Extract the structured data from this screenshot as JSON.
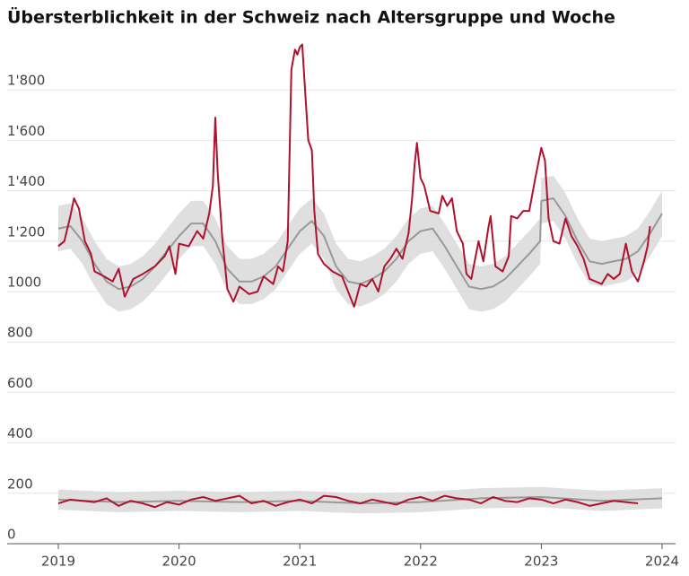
{
  "chart_data": {
    "type": "line",
    "title": "Übersterblichkeit in der Schweiz nach Altersgruppe und Woche",
    "xlim": [
      2019,
      2024
    ],
    "xticks": [
      2019,
      2020,
      2021,
      2022,
      2023,
      2024
    ],
    "ylim": [
      0,
      2000
    ],
    "yticks": [
      0,
      200,
      400,
      600,
      800,
      1000,
      {
        "value": 1200,
        "label": "1'200"
      },
      {
        "value": 1400,
        "label": "1'400"
      },
      {
        "value": 1600,
        "label": "1'600"
      },
      {
        "value": 1800,
        "label": "1'800"
      }
    ],
    "grid": true,
    "series": [
      {
        "kind": "band",
        "color": "#d9d9d9",
        "x": [
          2019.0,
          2019.1,
          2019.2,
          2019.3,
          2019.4,
          2019.5,
          2019.6,
          2019.7,
          2019.8,
          2019.9,
          2020.0,
          2020.1,
          2020.2,
          2020.3,
          2020.4,
          2020.5,
          2020.6,
          2020.7,
          2020.8,
          2020.9,
          2021.0,
          2021.1,
          2021.2,
          2021.3,
          2021.4,
          2021.5,
          2021.6,
          2021.7,
          2021.8,
          2021.9,
          2022.0,
          2022.1,
          2022.2,
          2022.3,
          2022.4,
          2022.5,
          2022.6,
          2022.7,
          2022.8,
          2022.9,
          2022.99,
          2023.0,
          2023.1,
          2023.2,
          2023.3,
          2023.4,
          2023.5,
          2023.6,
          2023.7,
          2023.8,
          2023.9,
          2024.0
        ],
        "upper": [
          1340,
          1350,
          1290,
          1200,
          1130,
          1100,
          1110,
          1140,
          1190,
          1250,
          1310,
          1360,
          1360,
          1290,
          1180,
          1130,
          1130,
          1150,
          1190,
          1260,
          1330,
          1370,
          1310,
          1190,
          1130,
          1120,
          1140,
          1170,
          1220,
          1290,
          1330,
          1340,
          1270,
          1190,
          1110,
          1100,
          1110,
          1140,
          1190,
          1240,
          1290,
          1450,
          1460,
          1390,
          1290,
          1210,
          1200,
          1210,
          1220,
          1250,
          1320,
          1400
        ],
        "lower": [
          1160,
          1170,
          1110,
          1020,
          950,
          920,
          930,
          960,
          1010,
          1070,
          1130,
          1180,
          1180,
          1110,
          1000,
          950,
          950,
          970,
          1010,
          1080,
          1150,
          1190,
          1130,
          1010,
          950,
          940,
          960,
          990,
          1040,
          1110,
          1150,
          1160,
          1090,
          1010,
          930,
          920,
          930,
          960,
          1010,
          1060,
          1110,
          1270,
          1280,
          1210,
          1110,
          1030,
          1020,
          1030,
          1040,
          1070,
          1140,
          1220
        ]
      },
      {
        "kind": "band",
        "color": "#d9d9d9",
        "x": [
          2019,
          2019.5,
          2020,
          2020.5,
          2021,
          2021.5,
          2022,
          2022.5,
          2023,
          2023.5,
          2024
        ],
        "upper": [
          215,
          205,
          210,
          205,
          210,
          200,
          205,
          220,
          225,
          210,
          220
        ],
        "lower": [
          135,
          125,
          130,
          125,
          130,
          120,
          125,
          140,
          145,
          130,
          140
        ]
      },
      {
        "kind": "line",
        "color": "#999999",
        "x": [
          2019.0,
          2019.1,
          2019.2,
          2019.3,
          2019.4,
          2019.5,
          2019.6,
          2019.7,
          2019.8,
          2019.9,
          2020.0,
          2020.1,
          2020.2,
          2020.3,
          2020.4,
          2020.5,
          2020.6,
          2020.7,
          2020.8,
          2020.9,
          2021.0,
          2021.1,
          2021.2,
          2021.3,
          2021.4,
          2021.5,
          2021.6,
          2021.7,
          2021.8,
          2021.9,
          2022.0,
          2022.1,
          2022.2,
          2022.3,
          2022.4,
          2022.5,
          2022.6,
          2022.7,
          2022.8,
          2022.9,
          2022.99,
          2023.0,
          2023.1,
          2023.2,
          2023.3,
          2023.4,
          2023.5,
          2023.6,
          2023.7,
          2023.8,
          2023.9,
          2024.0
        ],
        "values": [
          1250,
          1260,
          1200,
          1110,
          1040,
          1010,
          1020,
          1050,
          1100,
          1160,
          1220,
          1270,
          1270,
          1200,
          1090,
          1040,
          1040,
          1060,
          1100,
          1170,
          1240,
          1280,
          1220,
          1100,
          1040,
          1030,
          1050,
          1080,
          1130,
          1200,
          1240,
          1250,
          1180,
          1100,
          1020,
          1010,
          1020,
          1050,
          1100,
          1150,
          1200,
          1360,
          1370,
          1300,
          1200,
          1120,
          1110,
          1120,
          1130,
          1160,
          1230,
          1310
        ]
      },
      {
        "kind": "line",
        "color": "#999999",
        "x": [
          2019,
          2019.5,
          2020,
          2020.5,
          2021,
          2021.5,
          2022,
          2022.5,
          2023,
          2023.5,
          2024
        ],
        "values": [
          175,
          165,
          170,
          165,
          170,
          160,
          165,
          180,
          185,
          170,
          180
        ]
      },
      {
        "kind": "line",
        "color": "#b0122e",
        "x": [
          2019.0,
          2019.05,
          2019.1,
          2019.13,
          2019.17,
          2019.22,
          2019.27,
          2019.3,
          2019.38,
          2019.45,
          2019.5,
          2019.55,
          2019.62,
          2019.7,
          2019.8,
          2019.88,
          2019.92,
          2019.97,
          2020.0,
          2020.08,
          2020.15,
          2020.2,
          2020.25,
          2020.28,
          2020.3,
          2020.32,
          2020.36,
          2020.4,
          2020.45,
          2020.5,
          2020.58,
          2020.65,
          2020.7,
          2020.78,
          2020.82,
          2020.86,
          2020.9,
          2020.93,
          2020.96,
          2020.98,
          2021.0,
          2021.02,
          2021.05,
          2021.07,
          2021.1,
          2021.12,
          2021.15,
          2021.2,
          2021.27,
          2021.35,
          2021.4,
          2021.45,
          2021.5,
          2021.55,
          2021.6,
          2021.65,
          2021.7,
          2021.75,
          2021.8,
          2021.85,
          2021.9,
          2021.93,
          2021.95,
          2021.97,
          2022.0,
          2022.03,
          2022.08,
          2022.15,
          2022.18,
          2022.22,
          2022.26,
          2022.3,
          2022.35,
          2022.38,
          2022.42,
          2022.48,
          2022.52,
          2022.56,
          2022.58,
          2022.62,
          2022.68,
          2022.73,
          2022.75,
          2022.8,
          2022.85,
          2022.9,
          2022.95,
          2023.0,
          2023.03,
          2023.06,
          2023.1,
          2023.15,
          2023.2,
          2023.25,
          2023.3,
          2023.35,
          2023.4,
          2023.45,
          2023.5,
          2023.55,
          2023.6,
          2023.65,
          2023.7,
          2023.75,
          2023.8,
          2023.85,
          2023.88,
          2023.9
        ],
        "values": [
          1180,
          1200,
          1300,
          1370,
          1330,
          1200,
          1150,
          1080,
          1060,
          1040,
          1090,
          980,
          1050,
          1070,
          1100,
          1140,
          1180,
          1070,
          1190,
          1180,
          1240,
          1210,
          1310,
          1420,
          1690,
          1470,
          1200,
          1010,
          960,
          1020,
          990,
          1000,
          1060,
          1030,
          1100,
          1080,
          1200,
          1880,
          1960,
          1940,
          1970,
          1980,
          1750,
          1600,
          1560,
          1320,
          1150,
          1110,
          1080,
          1060,
          1000,
          940,
          1030,
          1020,
          1050,
          1000,
          1100,
          1130,
          1170,
          1130,
          1230,
          1370,
          1500,
          1590,
          1450,
          1420,
          1320,
          1310,
          1380,
          1340,
          1370,
          1240,
          1190,
          1070,
          1050,
          1200,
          1120,
          1250,
          1300,
          1100,
          1080,
          1140,
          1300,
          1290,
          1320,
          1320,
          1450,
          1570,
          1520,
          1290,
          1200,
          1190,
          1290,
          1220,
          1180,
          1130,
          1050,
          1040,
          1030,
          1070,
          1050,
          1070,
          1190,
          1080,
          1040,
          1120,
          1180,
          1260
        ]
      },
      {
        "kind": "line",
        "color": "#b0122e",
        "x": [
          2019.0,
          2019.1,
          2019.2,
          2019.3,
          2019.4,
          2019.5,
          2019.6,
          2019.7,
          2019.8,
          2019.9,
          2020.0,
          2020.1,
          2020.2,
          2020.3,
          2020.4,
          2020.5,
          2020.6,
          2020.7,
          2020.8,
          2020.9,
          2021.0,
          2021.1,
          2021.2,
          2021.3,
          2021.4,
          2021.5,
          2021.6,
          2021.7,
          2021.8,
          2021.9,
          2022.0,
          2022.1,
          2022.2,
          2022.3,
          2022.4,
          2022.5,
          2022.6,
          2022.7,
          2022.8,
          2022.9,
          2023.0,
          2023.1,
          2023.2,
          2023.3,
          2023.4,
          2023.5,
          2023.6,
          2023.7,
          2023.8
        ],
        "values": [
          160,
          175,
          170,
          165,
          180,
          150,
          170,
          160,
          145,
          165,
          155,
          175,
          185,
          170,
          180,
          190,
          160,
          170,
          150,
          165,
          175,
          160,
          190,
          185,
          170,
          160,
          175,
          165,
          155,
          175,
          185,
          170,
          190,
          180,
          175,
          160,
          185,
          170,
          165,
          180,
          175,
          160,
          175,
          165,
          150,
          160,
          170,
          165,
          160
        ]
      }
    ]
  }
}
